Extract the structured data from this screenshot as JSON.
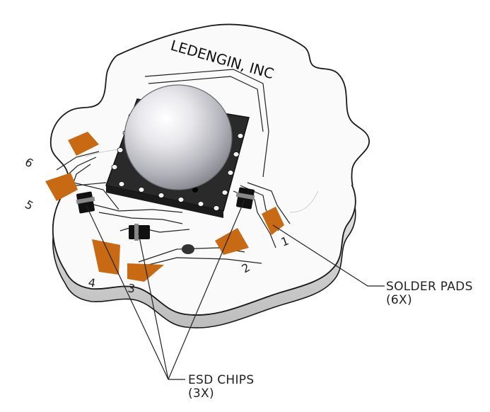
{
  "brand_text": "LEDENGIN, INC",
  "pad_numbers": [
    "1",
    "2",
    "3",
    "4",
    "5",
    "6"
  ],
  "callouts": {
    "solder_pads": {
      "label": "SOLDER PADS",
      "count": "(6X)"
    },
    "esd_chips": {
      "label": "ESD CHIPS",
      "count": "(3X)"
    }
  },
  "colors": {
    "pad_orange": "#c86a14",
    "board_white": "#fafafa",
    "outline": "#1a1a1a",
    "package_dark": "#2a2a2a",
    "dome_light": "#f4f4f6",
    "dome_shadow": "#9c9ca4"
  }
}
